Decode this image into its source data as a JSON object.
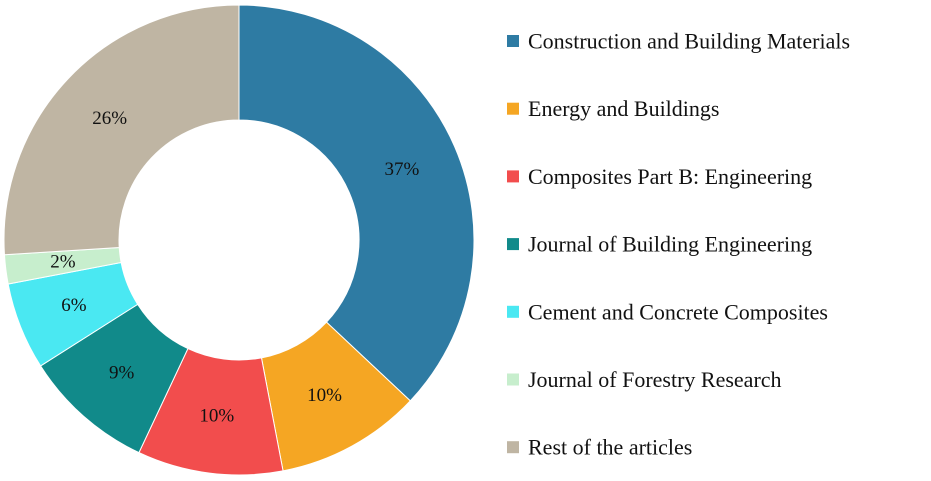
{
  "chart_data": {
    "type": "pie",
    "variant": "donut",
    "labels": [
      "Construction and Building Materials",
      "Energy and Buildings",
      "Composites Part B: Engineering",
      "Journal of Building Engineering",
      "Cement and Concrete Composites",
      "Journal of Forestry Research",
      "Rest of the articles"
    ],
    "values": [
      37,
      10,
      10,
      9,
      6,
      2,
      26
    ],
    "value_labels": [
      "37%",
      "10%",
      "10%",
      "9%",
      "6%",
      "2%",
      "26%"
    ],
    "colors": [
      "#2e7ba3",
      "#f5a623",
      "#f24d4d",
      "#118a8a",
      "#4ae8f2",
      "#c7eecd",
      "#bfb5a3"
    ],
    "legend_position": "right"
  }
}
